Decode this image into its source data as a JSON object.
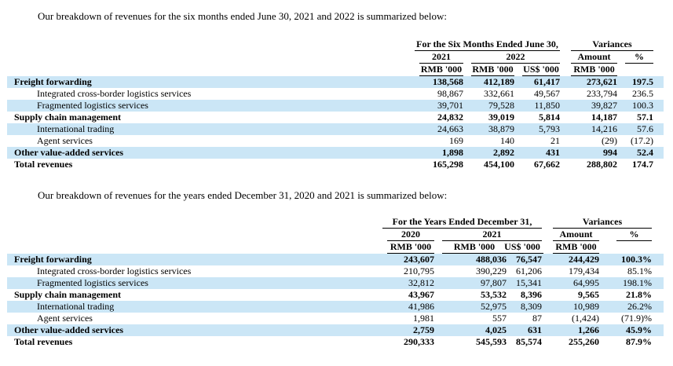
{
  "colors": {
    "row_highlight": "#cbe6f6",
    "text": "#000000"
  },
  "intros": {
    "six_months": "Our breakdown of revenues for the six months ended June 30, 2021 and 2022 is summarized below:",
    "years": "Our breakdown of revenues for the years ended December 31, 2020 and 2021 is summarized below:"
  },
  "tables": [
    {
      "period_header": "For the Six Months Ended June 30,",
      "variances_header": "Variances",
      "col_headers": [
        "2021",
        "2022",
        "Amount",
        "%"
      ],
      "unit_headers": [
        "RMB '000",
        "RMB '000",
        "US$ '000",
        "RMB '000"
      ],
      "rows": [
        {
          "label": "Freight forwarding",
          "indent": false,
          "bold": true,
          "highlight": true,
          "values": [
            "138,568",
            "412,189",
            "61,417",
            "273,621",
            "197.5"
          ]
        },
        {
          "label": "Integrated cross-border logistics services",
          "indent": true,
          "bold": false,
          "highlight": false,
          "values": [
            "98,867",
            "332,661",
            "49,567",
            "233,794",
            "236.5"
          ]
        },
        {
          "label": "Fragmented logistics services",
          "indent": true,
          "bold": false,
          "highlight": true,
          "values": [
            "39,701",
            "79,528",
            "11,850",
            "39,827",
            "100.3"
          ]
        },
        {
          "label": "Supply chain management",
          "indent": false,
          "bold": true,
          "highlight": false,
          "values": [
            "24,832",
            "39,019",
            "5,814",
            "14,187",
            "57.1"
          ]
        },
        {
          "label": "International trading",
          "indent": true,
          "bold": false,
          "highlight": true,
          "values": [
            "24,663",
            "38,879",
            "5,793",
            "14,216",
            "57.6"
          ]
        },
        {
          "label": "Agent services",
          "indent": true,
          "bold": false,
          "highlight": false,
          "values": [
            "169",
            "140",
            "21",
            "(29)",
            "(17.2)"
          ]
        },
        {
          "label": "Other value-added services",
          "indent": false,
          "bold": true,
          "highlight": true,
          "values": [
            "1,898",
            "2,892",
            "431",
            "994",
            "52.4"
          ]
        },
        {
          "label": "Total revenues",
          "indent": false,
          "bold": true,
          "highlight": false,
          "values": [
            "165,298",
            "454,100",
            "67,662",
            "288,802",
            "174.7"
          ]
        }
      ]
    },
    {
      "period_header": "For the Years Ended December 31,",
      "variances_header": "Variances",
      "col_headers": [
        "2020",
        "2021",
        "Amount",
        "%"
      ],
      "unit_headers": [
        "RMB '000",
        "RMB '000",
        "US$ '000",
        "RMB '000"
      ],
      "rows": [
        {
          "label": "Freight forwarding",
          "indent": false,
          "bold": true,
          "highlight": true,
          "values": [
            "243,607",
            "488,036",
            "76,547",
            "244,429",
            "100.3%"
          ]
        },
        {
          "label": "Integrated cross-border logistics services",
          "indent": true,
          "bold": false,
          "highlight": false,
          "values": [
            "210,795",
            "390,229",
            "61,206",
            "179,434",
            "85.1%"
          ]
        },
        {
          "label": "Fragmented logistics services",
          "indent": true,
          "bold": false,
          "highlight": true,
          "values": [
            "32,812",
            "97,807",
            "15,341",
            "64,995",
            "198.1%"
          ]
        },
        {
          "label": "Supply chain management",
          "indent": false,
          "bold": true,
          "highlight": false,
          "values": [
            "43,967",
            "53,532",
            "8,396",
            "9,565",
            "21.8%"
          ]
        },
        {
          "label": "International trading",
          "indent": true,
          "bold": false,
          "highlight": true,
          "values": [
            "41,986",
            "52,975",
            "8,309",
            "10,989",
            "26.2%"
          ]
        },
        {
          "label": "Agent services",
          "indent": true,
          "bold": false,
          "highlight": false,
          "values": [
            "1,981",
            "557",
            "87",
            "(1,424)",
            "(71.9)%"
          ]
        },
        {
          "label": "Other value-added services",
          "indent": false,
          "bold": true,
          "highlight": true,
          "values": [
            "2,759",
            "4,025",
            "631",
            "1,266",
            "45.9%"
          ]
        },
        {
          "label": "Total revenues",
          "indent": false,
          "bold": true,
          "highlight": false,
          "values": [
            "290,333",
            "545,593",
            "85,574",
            "255,260",
            "87.9%"
          ]
        }
      ]
    }
  ]
}
